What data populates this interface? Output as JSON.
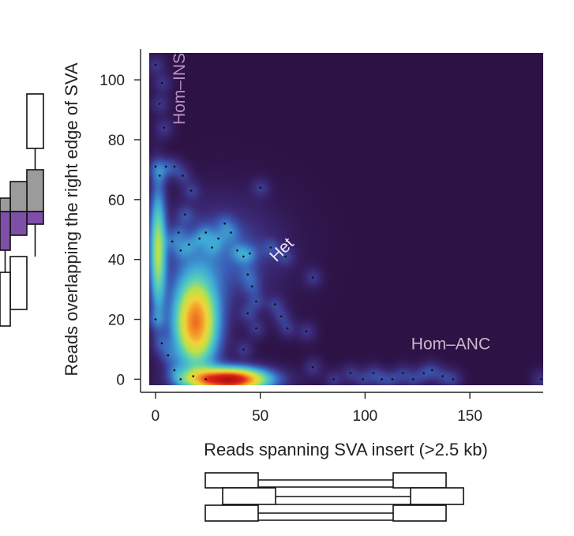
{
  "chart_data": {
    "type": "heatmap",
    "title": "",
    "xlabel": "Reads spanning SVA insert (>2.5 kb)",
    "ylabel": "Reads overlapping the right edge of SVA",
    "xlim": [
      -3,
      185
    ],
    "ylim": [
      -2,
      109
    ],
    "xticks": [
      0,
      50,
      100,
      150
    ],
    "yticks": [
      0,
      20,
      40,
      60,
      80,
      100
    ],
    "colormap": [
      "#2d1245",
      "#3b2a78",
      "#3a5fb8",
      "#3fa7d6",
      "#5ad2b4",
      "#bde14a",
      "#f1d33a",
      "#f28a25",
      "#e0261b",
      "#b8120e"
    ],
    "background_color": "#2d1245",
    "density_peaks": [
      {
        "x": 35,
        "y": 0,
        "density": 1.0
      },
      {
        "x": 19,
        "y": 19,
        "density": 0.74
      },
      {
        "x": 1,
        "y": 43,
        "density": 0.42
      }
    ],
    "points": [
      [
        0,
        105
      ],
      [
        3,
        99
      ],
      [
        2,
        92
      ],
      [
        4,
        84
      ],
      [
        0,
        71
      ],
      [
        2,
        68
      ],
      [
        5,
        71
      ],
      [
        9,
        71
      ],
      [
        13,
        68
      ],
      [
        17,
        63
      ],
      [
        14,
        55
      ],
      [
        11,
        49
      ],
      [
        8,
        46
      ],
      [
        12,
        43
      ],
      [
        16,
        45
      ],
      [
        21,
        47
      ],
      [
        24,
        49
      ],
      [
        27,
        44
      ],
      [
        30,
        47
      ],
      [
        33,
        52
      ],
      [
        36,
        49
      ],
      [
        39,
        43
      ],
      [
        42,
        41
      ],
      [
        45,
        42
      ],
      [
        44,
        35
      ],
      [
        46,
        31
      ],
      [
        48,
        26
      ],
      [
        44,
        22
      ],
      [
        48,
        17
      ],
      [
        42,
        10
      ],
      [
        50,
        64
      ],
      [
        55,
        44
      ],
      [
        62,
        41
      ],
      [
        75,
        34
      ],
      [
        57,
        25
      ],
      [
        60,
        21
      ],
      [
        63,
        17
      ],
      [
        72,
        16
      ],
      [
        75,
        4
      ],
      [
        85,
        0
      ],
      [
        93,
        2
      ],
      [
        99,
        0
      ],
      [
        104,
        2
      ],
      [
        108,
        0
      ],
      [
        113,
        0
      ],
      [
        118,
        2
      ],
      [
        123,
        0
      ],
      [
        128,
        2
      ],
      [
        132,
        3
      ],
      [
        137,
        1
      ],
      [
        142,
        0
      ],
      [
        184,
        0
      ],
      [
        0,
        20
      ],
      [
        3,
        12
      ],
      [
        6,
        8
      ],
      [
        9,
        3
      ],
      [
        12,
        0
      ],
      [
        18,
        1
      ],
      [
        24,
        0
      ]
    ],
    "annotations": [
      {
        "text": "Hom–INS",
        "x": 14,
        "y": 85,
        "rotation": -90,
        "color": "#b98ec8"
      },
      {
        "text": "Het",
        "x": 62,
        "y": 42,
        "rotation": -45,
        "color": "#f3e3f5"
      },
      {
        "text": "Hom–ANC",
        "x": 122,
        "y": 10,
        "rotation": 0,
        "color": "#c9b8cc"
      }
    ],
    "left_histogram": {
      "colors": {
        "top": "#9b9b9b",
        "bottom": "#7e4fa8"
      }
    }
  }
}
